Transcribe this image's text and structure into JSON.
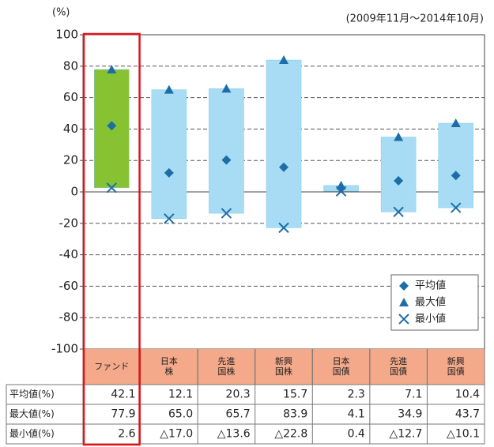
{
  "chart_data": {
    "type": "range-bar",
    "y_unit": "(%)",
    "period": "(2009年11月～2014年10月)",
    "categories": [
      "ファンド",
      "日本\n株",
      "先進\n国株",
      "新興\n国株",
      "日本\n国債",
      "先進\n国債",
      "新興\n国債"
    ],
    "bar_colors": [
      "#86c232",
      "#a8dcf4",
      "#a8dcf4",
      "#a8dcf4",
      "#a8dcf4",
      "#a8dcf4",
      "#a8dcf4"
    ],
    "series": [
      {
        "name": "平均値",
        "marker": "diamond",
        "color": "#1d6ea8",
        "values": [
          42.1,
          12.1,
          20.3,
          15.7,
          2.3,
          7.1,
          10.4
        ]
      },
      {
        "name": "最大値",
        "marker": "triangle",
        "color": "#1d6ea8",
        "values": [
          77.9,
          65.0,
          65.7,
          83.9,
          4.1,
          34.9,
          43.7
        ],
        "value_labels": [
          "77.9",
          "65.0",
          "65.7",
          "83.9",
          "4.1",
          "34.9",
          "43.7"
        ]
      },
      {
        "name": "最小値",
        "marker": "cross",
        "color": "#1d6ea8",
        "values": [
          2.6,
          -17.0,
          -13.6,
          -22.8,
          0.4,
          -12.7,
          -10.1
        ],
        "value_labels": [
          "2.6",
          "△17.0",
          "△13.6",
          "△22.8",
          "0.4",
          "△12.7",
          "△10.1"
        ]
      }
    ],
    "table_row_labels": [
      "平均値(%)",
      "最大値(%)",
      "最小値(%)"
    ],
    "ylim": [
      -100,
      100
    ],
    "yticks": [
      -100,
      -80,
      -60,
      -40,
      -20,
      0,
      20,
      40,
      60,
      80,
      100
    ],
    "grid": true,
    "legend": "lower right"
  }
}
